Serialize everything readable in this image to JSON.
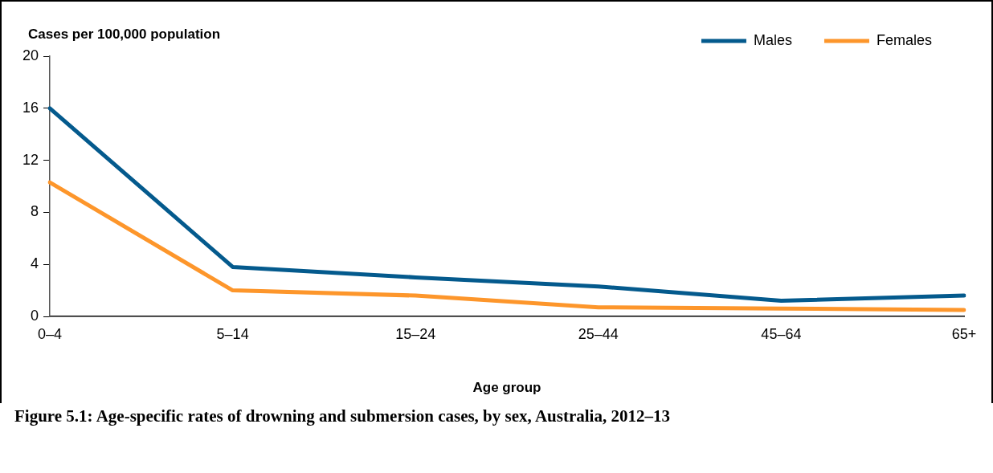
{
  "chart_data": {
    "type": "line",
    "title": "Figure 5.1: Age-specific rates of drowning and submersion cases, by sex, Australia, 2012–13",
    "xlabel": "Age group",
    "ylabel": "Cases per 100,000 population",
    "categories": [
      "0–4",
      "5–14",
      "15–24",
      "25–44",
      "45–64",
      "65+"
    ],
    "series": [
      {
        "name": "Males",
        "color": "#045a8d",
        "values": [
          16.0,
          3.8,
          3.0,
          2.3,
          1.2,
          1.6
        ]
      },
      {
        "name": "Females",
        "color": "#fd962b",
        "values": [
          10.3,
          2.0,
          1.6,
          0.7,
          0.6,
          0.5
        ]
      }
    ],
    "ylim": [
      0,
      20
    ],
    "yticks": [
      0,
      4,
      8,
      12,
      16,
      20
    ],
    "grid": false,
    "legend": "top right",
    "marker": "none",
    "line_style": "solid"
  }
}
